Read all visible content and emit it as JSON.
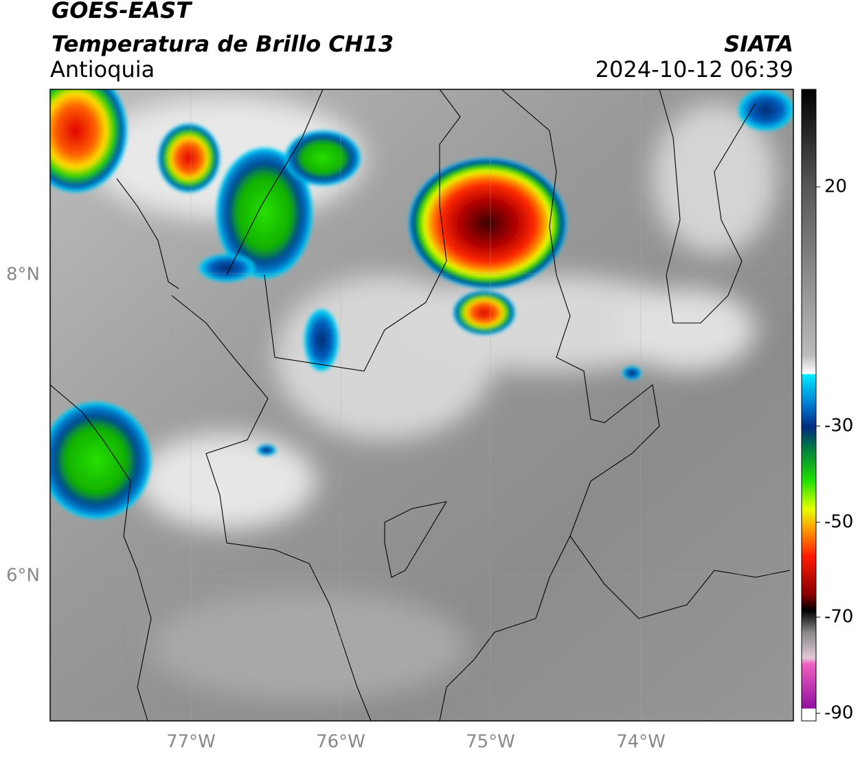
{
  "header": {
    "title": "GOES-EAST",
    "subtitle": "Temperatura de Brillo CH13",
    "region": "Antioquia",
    "source": "SIATA",
    "datetime": "2024-10-12 06:39"
  },
  "axes": {
    "longitude_labels": [
      "77°W",
      "76°W",
      "75°W",
      "74°W"
    ],
    "latitude_labels": [
      "8°N",
      "6°N"
    ]
  },
  "colorbar": {
    "labels": [
      "20",
      "-30",
      "-50",
      "-70",
      "-90"
    ]
  }
}
